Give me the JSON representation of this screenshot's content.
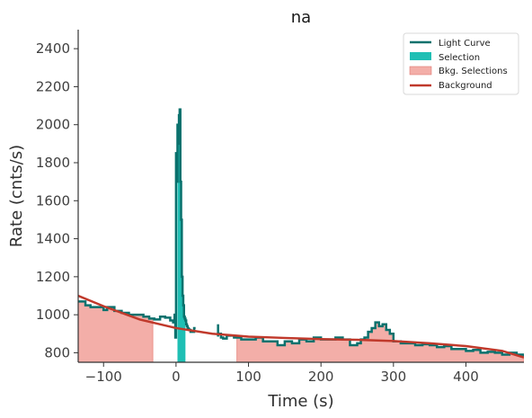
{
  "chart_data": {
    "type": "line",
    "title": "na",
    "xlabel": "Time (s)",
    "ylabel": "Rate (cnts/s)",
    "xlim": [
      -135,
      480
    ],
    "ylim": [
      750,
      2500
    ],
    "xticks": [
      -100,
      0,
      100,
      200,
      300,
      400
    ],
    "yticks": [
      800,
      1000,
      1200,
      1400,
      1600,
      1800,
      2000,
      2200,
      2400
    ],
    "grid": false,
    "legend_position": "top-right",
    "colors": {
      "light_curve": "#0a716d",
      "selection": "#1fbfb4",
      "bkg_selection": "#f3aea8",
      "background": "#c0392b"
    },
    "legend": [
      "Light Curve",
      "Selection",
      "Bkg. Selections",
      "Background"
    ],
    "series": [
      {
        "name": "Light Curve",
        "type": "step",
        "x": [
          -135,
          -125,
          -118,
          -110,
          -100,
          -95,
          -85,
          -75,
          -65,
          -55,
          -45,
          -37,
          -30,
          -22,
          -15,
          -8,
          -4,
          -2,
          -1,
          0,
          1,
          2,
          3,
          4,
          5,
          6,
          7,
          8,
          9,
          10,
          11,
          12,
          13,
          14,
          15,
          16,
          17,
          18,
          20,
          25,
          58,
          62,
          65,
          70,
          80,
          90,
          100,
          110,
          120,
          130,
          140,
          150,
          160,
          170,
          180,
          190,
          200,
          210,
          220,
          230,
          240,
          250,
          255,
          260,
          265,
          270,
          275,
          280,
          285,
          290,
          295,
          300,
          310,
          320,
          330,
          340,
          350,
          360,
          370,
          380,
          390,
          400,
          410,
          420,
          430,
          440,
          450,
          460,
          470,
          480
        ],
        "y": [
          1070,
          1050,
          1040,
          1040,
          1025,
          1040,
          1020,
          1010,
          1000,
          1000,
          990,
          980,
          975,
          990,
          985,
          970,
          960,
          1000,
          880,
          1850,
          1700,
          2000,
          1900,
          2050,
          2080,
          1700,
          1500,
          1200,
          1100,
          1050,
          990,
          980,
          970,
          950,
          940,
          930,
          925,
          920,
          910,
          930,
          900,
          880,
          875,
          890,
          880,
          870,
          870,
          880,
          860,
          860,
          840,
          860,
          850,
          870,
          860,
          880,
          870,
          870,
          880,
          870,
          840,
          850,
          870,
          880,
          910,
          930,
          960,
          940,
          950,
          920,
          900,
          860,
          850,
          850,
          840,
          845,
          840,
          830,
          835,
          820,
          820,
          810,
          815,
          800,
          805,
          800,
          790,
          800,
          790,
          780
        ]
      },
      {
        "name": "Background",
        "type": "line",
        "x": [
          -135,
          -100,
          -50,
          0,
          50,
          100,
          150,
          200,
          250,
          300,
          350,
          400,
          450,
          480
        ],
        "y": [
          1100,
          1045,
          975,
          930,
          900,
          885,
          878,
          872,
          868,
          862,
          850,
          835,
          810,
          775
        ]
      }
    ],
    "selections": [
      [
        2,
        13
      ]
    ],
    "bkg_selections": [
      [
        -135,
        -32
      ],
      [
        84,
        480
      ]
    ],
    "background_extra_segment": {
      "x": [
        58,
        62
      ],
      "y": [
        950,
        945
      ]
    }
  }
}
